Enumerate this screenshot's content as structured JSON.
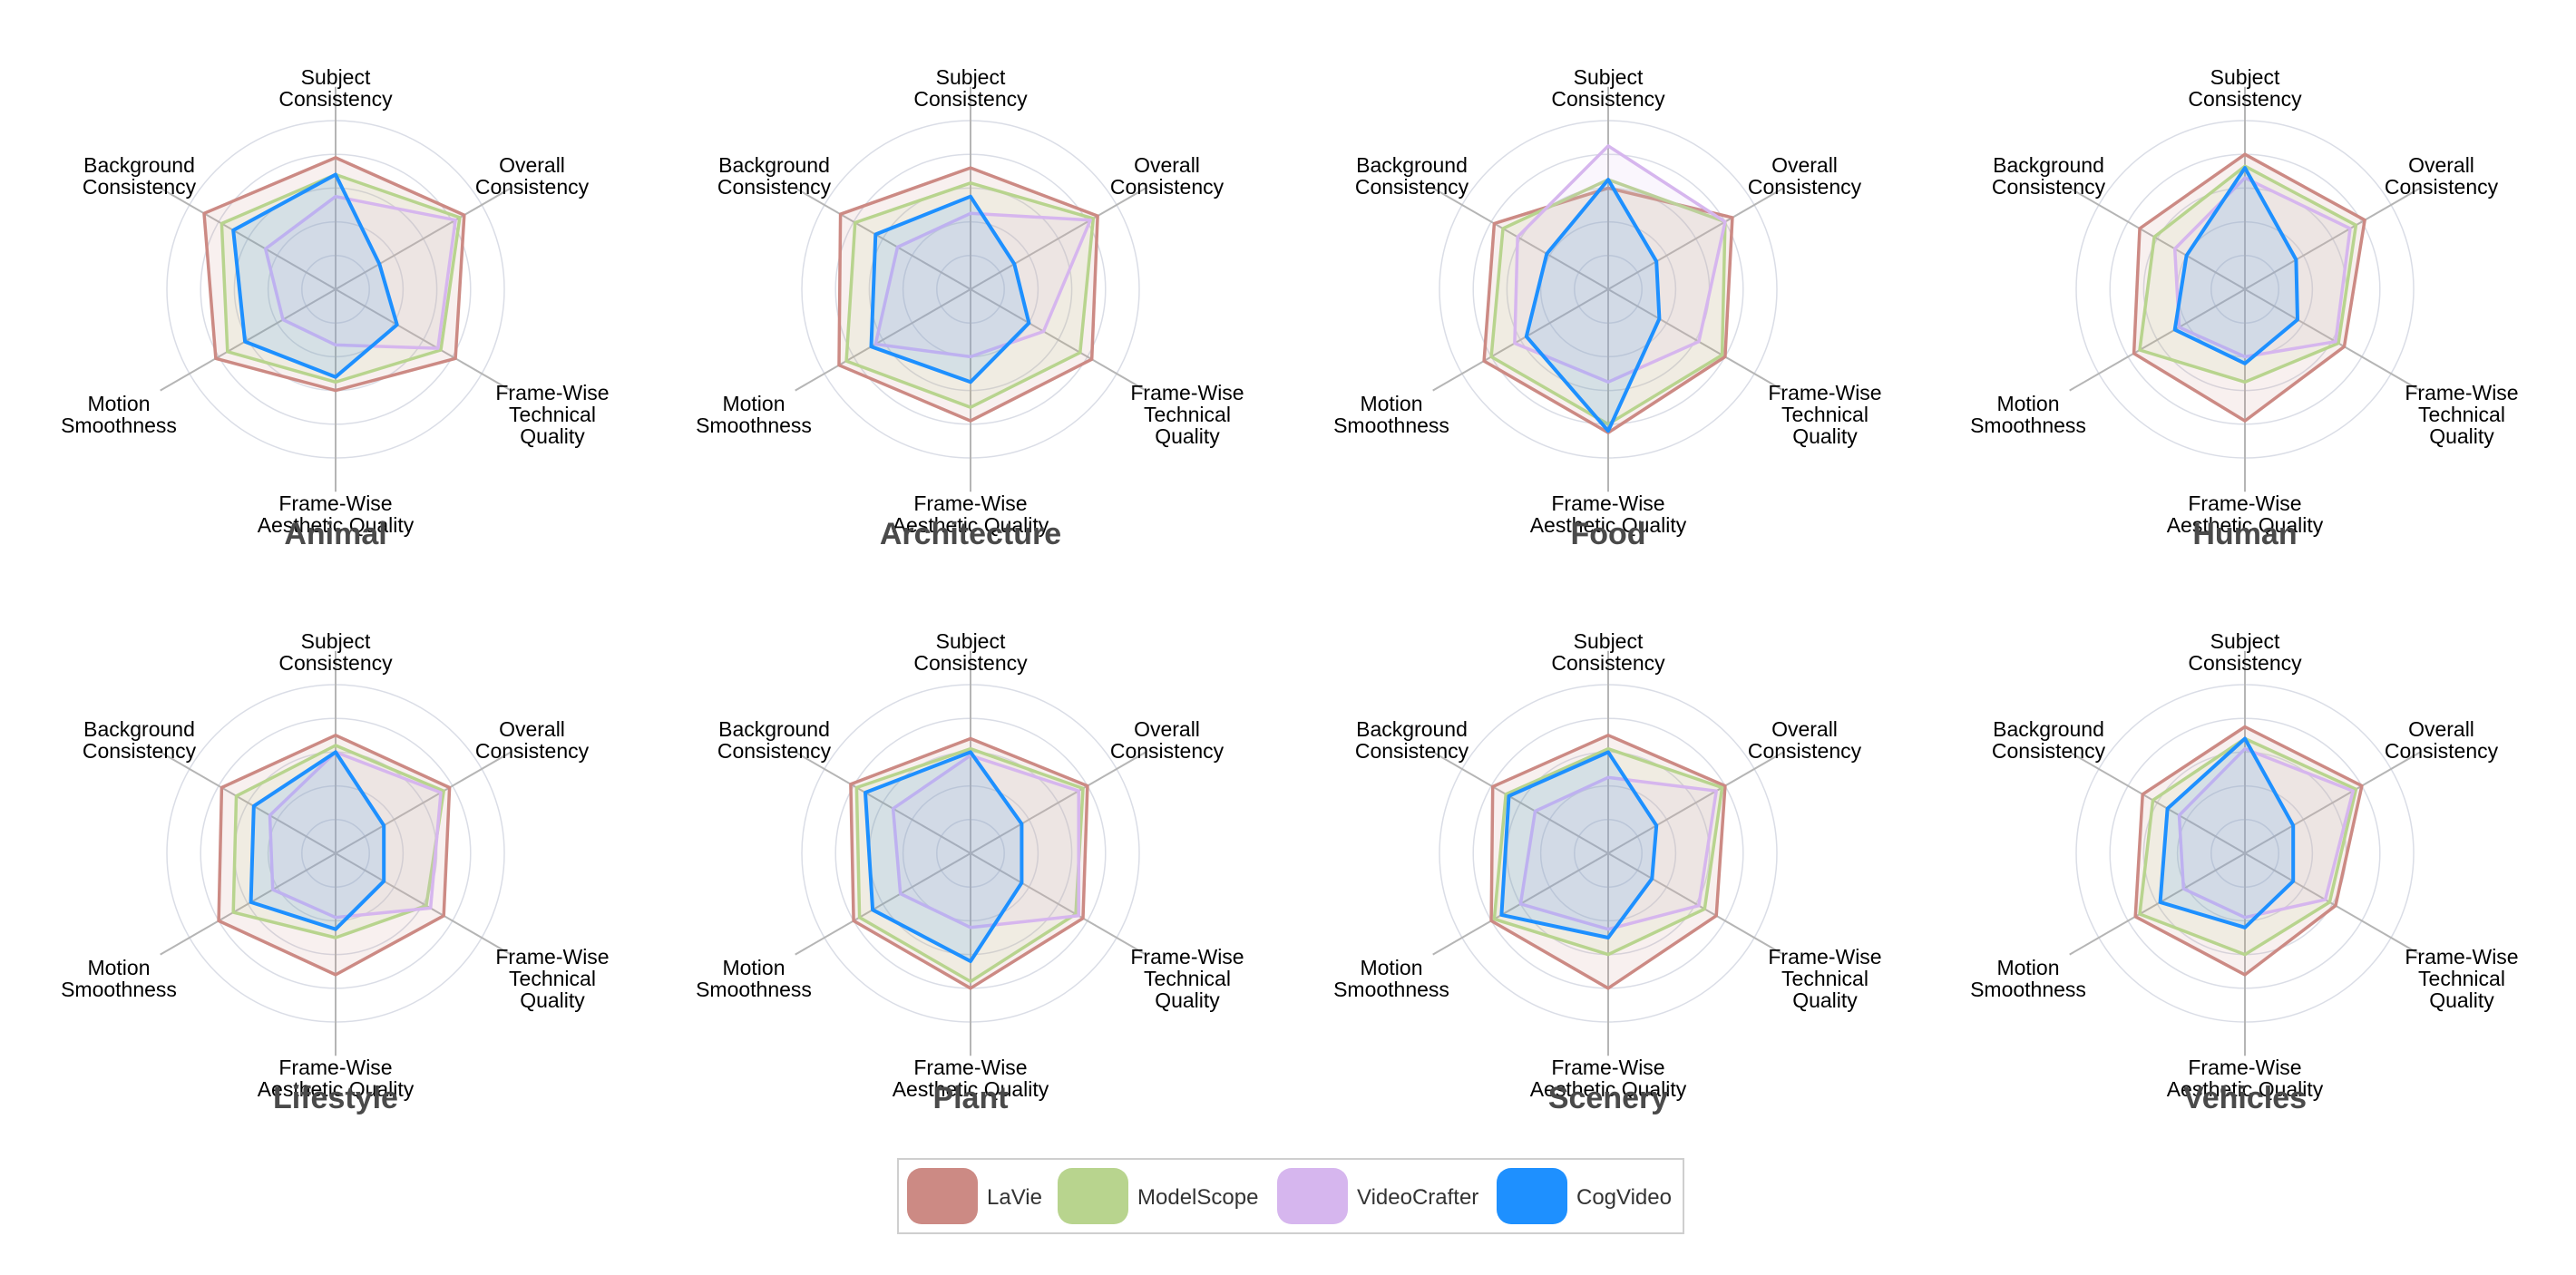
{
  "axes": [
    [
      "Subject",
      "Consistency"
    ],
    [
      "Overall",
      "Consistency"
    ],
    [
      "Frame-Wise",
      "Technical",
      "Quality"
    ],
    [
      "Frame-Wise",
      "Aesthetic Quality"
    ],
    [
      "Motion",
      "Smoothness"
    ],
    [
      "Background",
      "Consistency"
    ]
  ],
  "legend": [
    {
      "name": "LaVie",
      "color": "#cc8a84"
    },
    {
      "name": "ModelScope",
      "color": "#b8d48e"
    },
    {
      "name": "VideoCrafter",
      "color": "#d6b6ee"
    },
    {
      "name": "CogVideo",
      "color": "#1e90ff"
    }
  ],
  "chart_data": [
    {
      "type": "radar",
      "title": "Animal",
      "series": [
        {
          "name": "LaVie",
          "values": [
            0.78,
            0.88,
            0.82,
            0.6,
            0.82,
            0.9
          ]
        },
        {
          "name": "ModelScope",
          "values": [
            0.68,
            0.85,
            0.72,
            0.55,
            0.74,
            0.78
          ]
        },
        {
          "name": "VideoCrafter",
          "values": [
            0.55,
            0.82,
            0.7,
            0.33,
            0.36,
            0.48
          ]
        },
        {
          "name": "CogVideo",
          "values": [
            0.68,
            0.3,
            0.42,
            0.52,
            0.62,
            0.7
          ]
        }
      ]
    },
    {
      "type": "radar",
      "title": "Architecture",
      "series": [
        {
          "name": "LaVie",
          "values": [
            0.72,
            0.87,
            0.83,
            0.78,
            0.9,
            0.89
          ]
        },
        {
          "name": "ModelScope",
          "values": [
            0.63,
            0.84,
            0.75,
            0.7,
            0.85,
            0.79
          ]
        },
        {
          "name": "VideoCrafter",
          "values": [
            0.45,
            0.82,
            0.5,
            0.4,
            0.65,
            0.5
          ]
        },
        {
          "name": "CogVideo",
          "values": [
            0.55,
            0.3,
            0.4,
            0.55,
            0.68,
            0.65
          ]
        }
      ]
    },
    {
      "type": "radar",
      "title": "Food",
      "series": [
        {
          "name": "LaVie",
          "values": [
            0.6,
            0.85,
            0.8,
            0.85,
            0.85,
            0.78
          ]
        },
        {
          "name": "ModelScope",
          "values": [
            0.65,
            0.8,
            0.78,
            0.8,
            0.8,
            0.72
          ]
        },
        {
          "name": "VideoCrafter",
          "values": [
            0.85,
            0.8,
            0.62,
            0.55,
            0.64,
            0.62
          ]
        },
        {
          "name": "CogVideo",
          "values": [
            0.65,
            0.33,
            0.35,
            0.84,
            0.56,
            0.42
          ]
        }
      ]
    },
    {
      "type": "radar",
      "title": "Human",
      "series": [
        {
          "name": "LaVie",
          "values": [
            0.8,
            0.82,
            0.68,
            0.78,
            0.76,
            0.72
          ]
        },
        {
          "name": "ModelScope",
          "values": [
            0.73,
            0.76,
            0.64,
            0.55,
            0.72,
            0.62
          ]
        },
        {
          "name": "VideoCrafter",
          "values": [
            0.66,
            0.72,
            0.62,
            0.4,
            0.45,
            0.48
          ]
        },
        {
          "name": "CogVideo",
          "values": [
            0.72,
            0.35,
            0.36,
            0.44,
            0.48,
            0.4
          ]
        }
      ]
    },
    {
      "type": "radar",
      "title": "Lifestyle",
      "series": [
        {
          "name": "LaVie",
          "values": [
            0.7,
            0.78,
            0.74,
            0.72,
            0.8,
            0.78
          ]
        },
        {
          "name": "ModelScope",
          "values": [
            0.64,
            0.74,
            0.62,
            0.5,
            0.7,
            0.68
          ]
        },
        {
          "name": "VideoCrafter",
          "values": [
            0.6,
            0.72,
            0.65,
            0.38,
            0.43,
            0.45
          ]
        },
        {
          "name": "CogVideo",
          "values": [
            0.6,
            0.33,
            0.33,
            0.45,
            0.58,
            0.56
          ]
        }
      ]
    },
    {
      "type": "radar",
      "title": "Plant",
      "series": [
        {
          "name": "LaVie",
          "values": [
            0.68,
            0.8,
            0.77,
            0.8,
            0.8,
            0.82
          ]
        },
        {
          "name": "ModelScope",
          "values": [
            0.62,
            0.77,
            0.72,
            0.76,
            0.76,
            0.78
          ]
        },
        {
          "name": "VideoCrafter",
          "values": [
            0.58,
            0.74,
            0.74,
            0.44,
            0.48,
            0.53
          ]
        },
        {
          "name": "CogVideo",
          "values": [
            0.6,
            0.35,
            0.35,
            0.64,
            0.67,
            0.72
          ]
        }
      ]
    },
    {
      "type": "radar",
      "title": "Scenery",
      "series": [
        {
          "name": "LaVie",
          "values": [
            0.7,
            0.8,
            0.74,
            0.8,
            0.8,
            0.79
          ]
        },
        {
          "name": "ModelScope",
          "values": [
            0.62,
            0.78,
            0.66,
            0.6,
            0.78,
            0.7
          ]
        },
        {
          "name": "VideoCrafter",
          "values": [
            0.45,
            0.74,
            0.62,
            0.45,
            0.6,
            0.5
          ]
        },
        {
          "name": "CogVideo",
          "values": [
            0.6,
            0.33,
            0.3,
            0.5,
            0.73,
            0.68
          ]
        }
      ]
    },
    {
      "type": "radar",
      "title": "Vehicles",
      "series": [
        {
          "name": "LaVie",
          "values": [
            0.75,
            0.8,
            0.62,
            0.72,
            0.75,
            0.7
          ]
        },
        {
          "name": "ModelScope",
          "values": [
            0.68,
            0.76,
            0.58,
            0.6,
            0.72,
            0.63
          ]
        },
        {
          "name": "VideoCrafter",
          "values": [
            0.62,
            0.74,
            0.55,
            0.38,
            0.42,
            0.45
          ]
        },
        {
          "name": "CogVideo",
          "values": [
            0.68,
            0.33,
            0.33,
            0.44,
            0.58,
            0.53
          ]
        }
      ]
    }
  ]
}
